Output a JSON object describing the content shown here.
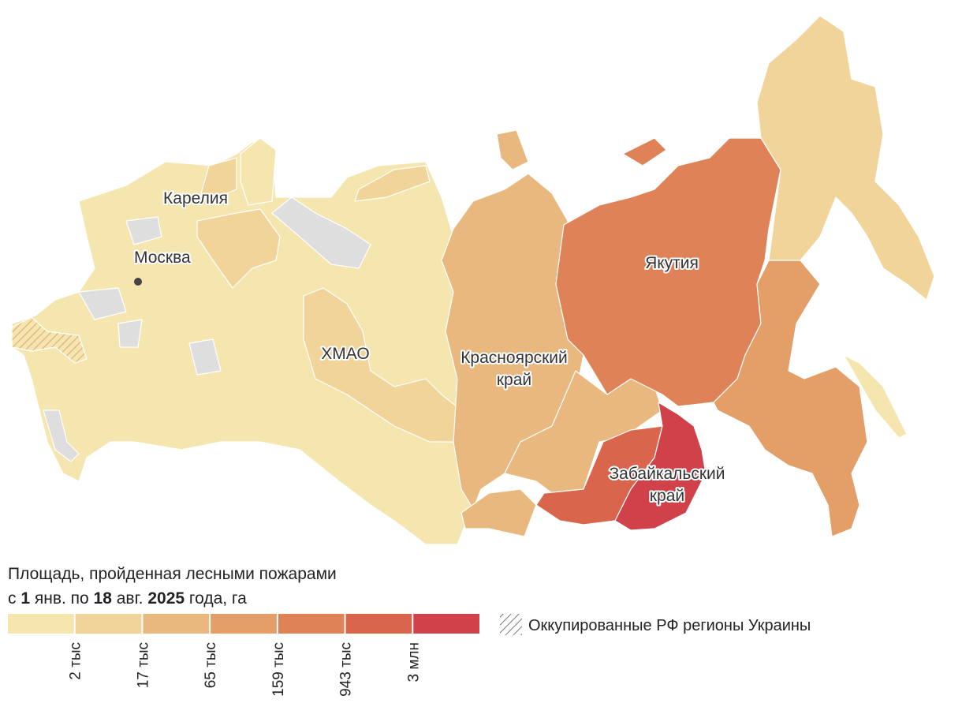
{
  "map": {
    "labels": [
      {
        "lines": [
          "Карелия"
        ]
      },
      {
        "lines": [
          "Москва"
        ]
      },
      {
        "lines": [
          "ХМАО"
        ]
      },
      {
        "lines": [
          "Красноярский",
          "край"
        ]
      },
      {
        "lines": [
          "Якутия"
        ]
      },
      {
        "lines": [
          "Забайкальский",
          "край"
        ]
      }
    ]
  },
  "legend": {
    "title_line_1": "Площадь, пройденная лесными пожарами",
    "title_line_2": [
      {
        "text": "с ",
        "bold": false
      },
      {
        "text": "1",
        "bold": true
      },
      {
        "text": " янв. по ",
        "bold": false
      },
      {
        "text": "18",
        "bold": true
      },
      {
        "text": " авг. ",
        "bold": false
      },
      {
        "text": "2025",
        "bold": true
      },
      {
        "text": " года, га",
        "bold": false
      }
    ],
    "colors": [
      "#f5e6b0",
      "#f0d49a",
      "#e9b87e",
      "#e49e67",
      "#df8258",
      "#d9664c",
      "#d0414a"
    ],
    "ticks": [
      "2 тыс",
      "17 тыс",
      "65 тыс",
      "159 тыс",
      "943 тыс",
      "3 млн"
    ],
    "hatch_label": "Оккупированные РФ регионы Украины"
  }
}
